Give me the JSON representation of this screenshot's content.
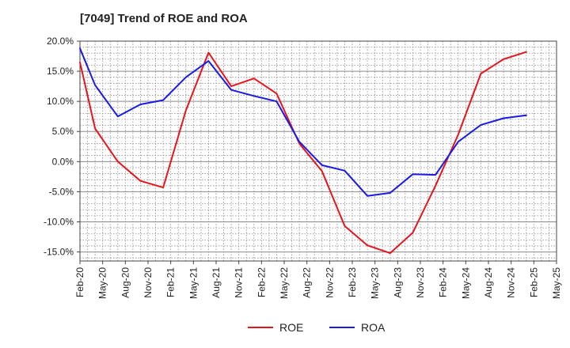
{
  "chart_data": {
    "type": "line",
    "title": "[7049]  Trend of ROE and ROA",
    "xlabel": "",
    "ylabel": "",
    "categories": [
      "Feb-20",
      "May-20",
      "Aug-20",
      "Nov-20",
      "Feb-21",
      "May-21",
      "Aug-21",
      "Nov-21",
      "Feb-22",
      "May-22",
      "Aug-22",
      "Nov-22",
      "Feb-23",
      "May-23",
      "Aug-23",
      "Nov-23",
      "Feb-24",
      "May-24",
      "Aug-24",
      "Nov-24",
      "Feb-25",
      "May-25"
    ],
    "x_tick_labels": [
      "Feb-20",
      "May-20",
      "Aug-20",
      "Nov-20",
      "Feb-21",
      "May-21",
      "Aug-21",
      "Nov-21",
      "Feb-22",
      "May-22",
      "Aug-22",
      "Nov-22",
      "Feb-23",
      "May-23",
      "Aug-23",
      "Nov-23",
      "Feb-24",
      "May-24",
      "Aug-24",
      "Nov-24",
      "Feb-25",
      "May-25"
    ],
    "y_tick_labels": [
      "20.0%",
      "15.0%",
      "10.0%",
      "5.0%",
      "0.0%",
      "-5.0%",
      "-10.0%",
      "-15.0%"
    ],
    "y_ticks": [
      20,
      15,
      10,
      5,
      0,
      -5,
      -10,
      -15
    ],
    "ylim": [
      -16.5,
      20
    ],
    "grid": true,
    "legend_position": "bottom-center",
    "series": [
      {
        "name": "ROE",
        "color": "#e8141b",
        "points": [
          [
            "Feb-20",
            16.5
          ],
          [
            "Apr-20",
            5.5
          ],
          [
            "Jul-20",
            0.0
          ],
          [
            "Oct-20",
            -3.2
          ],
          [
            "Jan-21",
            -4.3
          ],
          [
            "Apr-21",
            8.5
          ],
          [
            "Jul-21",
            18.1
          ],
          [
            "Oct-21",
            12.5
          ],
          [
            "Jan-22",
            13.8
          ],
          [
            "Apr-22",
            11.3
          ],
          [
            "Jul-22",
            3.0
          ],
          [
            "Oct-22",
            -1.6
          ],
          [
            "Jan-23",
            -10.7
          ],
          [
            "Apr-23",
            -13.9
          ],
          [
            "Jul-23",
            -15.2
          ],
          [
            "Oct-23",
            -11.8
          ],
          [
            "Jan-24",
            -4.0
          ],
          [
            "Apr-24",
            4.5
          ],
          [
            "Jul-24",
            14.6
          ],
          [
            "Oct-24",
            17.0
          ],
          [
            "Jan-25",
            18.2
          ]
        ]
      },
      {
        "name": "ROA",
        "color": "#1a1ae6",
        "points": [
          [
            "Feb-20",
            18.8
          ],
          [
            "Apr-20",
            12.7
          ],
          [
            "Jul-20",
            7.5
          ],
          [
            "Oct-20",
            9.5
          ],
          [
            "Jan-21",
            10.2
          ],
          [
            "Apr-21",
            14.0
          ],
          [
            "Jul-21",
            16.7
          ],
          [
            "Oct-21",
            11.9
          ],
          [
            "Jan-22",
            10.9
          ],
          [
            "Apr-22",
            10.0
          ],
          [
            "Jul-22",
            3.3
          ],
          [
            "Oct-22",
            -0.6
          ],
          [
            "Jan-23",
            -1.5
          ],
          [
            "Apr-23",
            -5.7
          ],
          [
            "Jul-23",
            -5.2
          ],
          [
            "Oct-23",
            -2.1
          ],
          [
            "Jan-24",
            -2.2
          ],
          [
            "Apr-24",
            3.3
          ],
          [
            "Jul-24",
            6.1
          ],
          [
            "Oct-24",
            7.2
          ],
          [
            "Jan-25",
            7.7
          ]
        ]
      }
    ]
  }
}
